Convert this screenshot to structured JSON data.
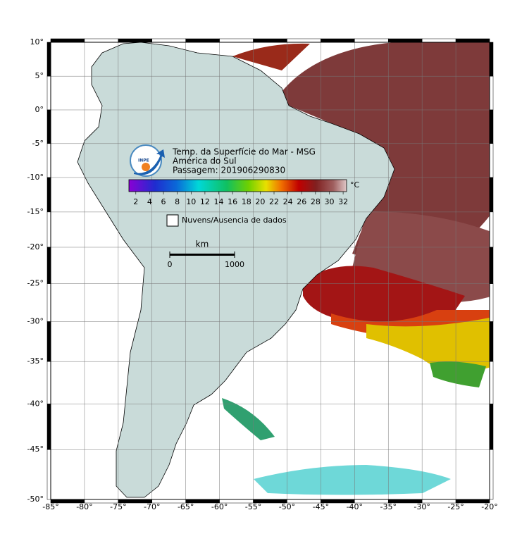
{
  "map": {
    "title": "Temp. da Superfície do Mar - MSG",
    "region": "América do Sul",
    "pass": "Passagem: 201906290830",
    "logo": "INPE",
    "lonlim": [
      -85,
      -20
    ],
    "latlim": [
      -50,
      10
    ],
    "lon_ticks": [
      {
        "value": -85,
        "label": "-85°"
      },
      {
        "value": -80,
        "label": "-80°"
      },
      {
        "value": -75,
        "label": "-75°"
      },
      {
        "value": -70,
        "label": "-70°"
      },
      {
        "value": -65,
        "label": "-65°"
      },
      {
        "value": -60,
        "label": "-60°"
      },
      {
        "value": -55,
        "label": "-55°"
      },
      {
        "value": -50,
        "label": "-50°"
      },
      {
        "value": -45,
        "label": "-45°"
      },
      {
        "value": -40,
        "label": "-40°"
      },
      {
        "value": -35,
        "label": "-35°"
      },
      {
        "value": -30,
        "label": "-30°"
      },
      {
        "value": -25,
        "label": "-25°"
      },
      {
        "value": -20,
        "label": "-20°"
      }
    ],
    "lat_ticks": [
      {
        "value": 10,
        "label": "10°"
      },
      {
        "value": 5,
        "label": "5°"
      },
      {
        "value": 0,
        "label": "0°"
      },
      {
        "value": -5,
        "label": "-5°"
      },
      {
        "value": -10,
        "label": "-10°"
      },
      {
        "value": -15,
        "label": "-15°"
      },
      {
        "value": -20,
        "label": "-20°"
      },
      {
        "value": -25,
        "label": "-25°"
      },
      {
        "value": -30,
        "label": "-30°"
      },
      {
        "value": -35,
        "label": "-35°"
      },
      {
        "value": -40,
        "label": "-40°"
      },
      {
        "value": -45,
        "label": "-45°"
      },
      {
        "value": -50,
        "label": "-50°"
      }
    ],
    "colorbar": {
      "range": [
        1,
        32.5
      ],
      "ticks": [
        2,
        4,
        6,
        8,
        10,
        12,
        14,
        16,
        18,
        20,
        22,
        24,
        26,
        28,
        30,
        32
      ],
      "unit": "°C"
    },
    "legend": "Nuvens/Ausencia de dados",
    "scale": {
      "unit": "km",
      "ticks": [
        0,
        1000
      ]
    }
  }
}
